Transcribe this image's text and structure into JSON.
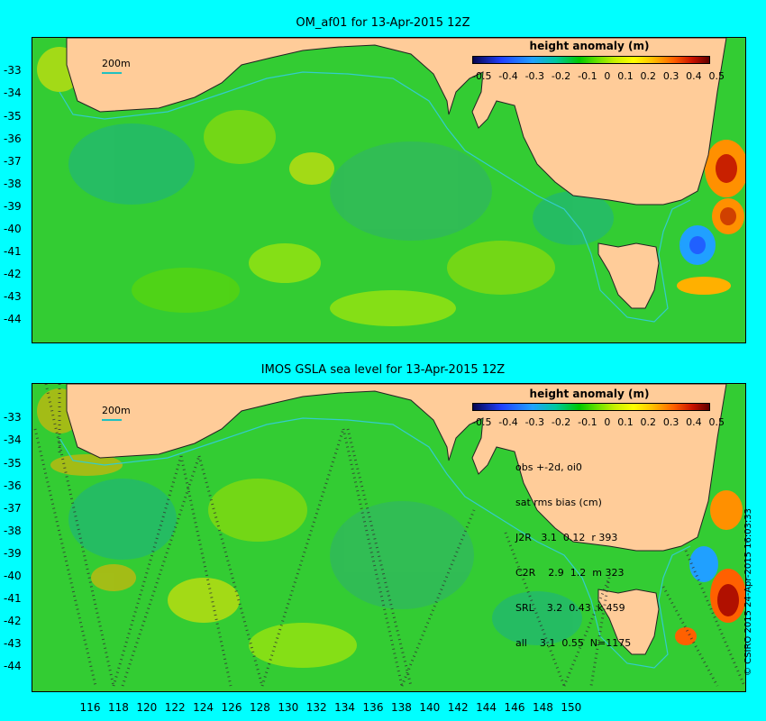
{
  "top_panel": {
    "title": "OM_af01 for 13-Apr-2015 12Z",
    "legend_title": "height anomaly (m)",
    "legend_ticks": [
      "-0.5",
      "-0.4",
      "-0.3",
      "-0.2",
      "-0.1",
      "0",
      "0.1",
      "0.2",
      "0.3",
      "0.4",
      "0.5"
    ],
    "scale_label": "200m",
    "y_ticks": [
      "-33",
      "-34",
      "-35",
      "-36",
      "-37",
      "-38",
      "-39",
      "-40",
      "-41",
      "-42",
      "-43",
      "-44"
    ]
  },
  "bottom_panel": {
    "title": "IMOS GSLA sea level  for 13-Apr-2015 12Z",
    "legend_title": "height anomaly (m)",
    "legend_ticks": [
      "-0.5",
      "-0.4",
      "-0.3",
      "-0.2",
      "-0.1",
      "0",
      "0.1",
      "0.2",
      "0.3",
      "0.4",
      "0.5"
    ],
    "scale_label": "200m",
    "y_ticks": [
      "-33",
      "-34",
      "-35",
      "-36",
      "-37",
      "-38",
      "-39",
      "-40",
      "-41",
      "-42",
      "-43",
      "-44"
    ],
    "x_ticks": [
      "116",
      "118",
      "120",
      "122",
      "124",
      "126",
      "128",
      "130",
      "132",
      "134",
      "136",
      "138",
      "140",
      "142",
      "144",
      "146",
      "148",
      "150"
    ],
    "stats_lines": [
      "obs +-2d, oi0",
      "sat rms bias (cm)",
      "J2R   3.1  0.12  r 393",
      "C2R    2.9  1.2  m 323",
      "SRL    3.2  0.43  k 459",
      "all    3.1  0.55  N=1175"
    ]
  },
  "credit": "© CSIRO 2015  24-Apr-2015 16:03:33",
  "colors": {
    "background": "#00ffff",
    "land": "#ffcc99",
    "ocean_base": "#33cc33",
    "isobath": "#33cccc",
    "track": "#333333"
  }
}
